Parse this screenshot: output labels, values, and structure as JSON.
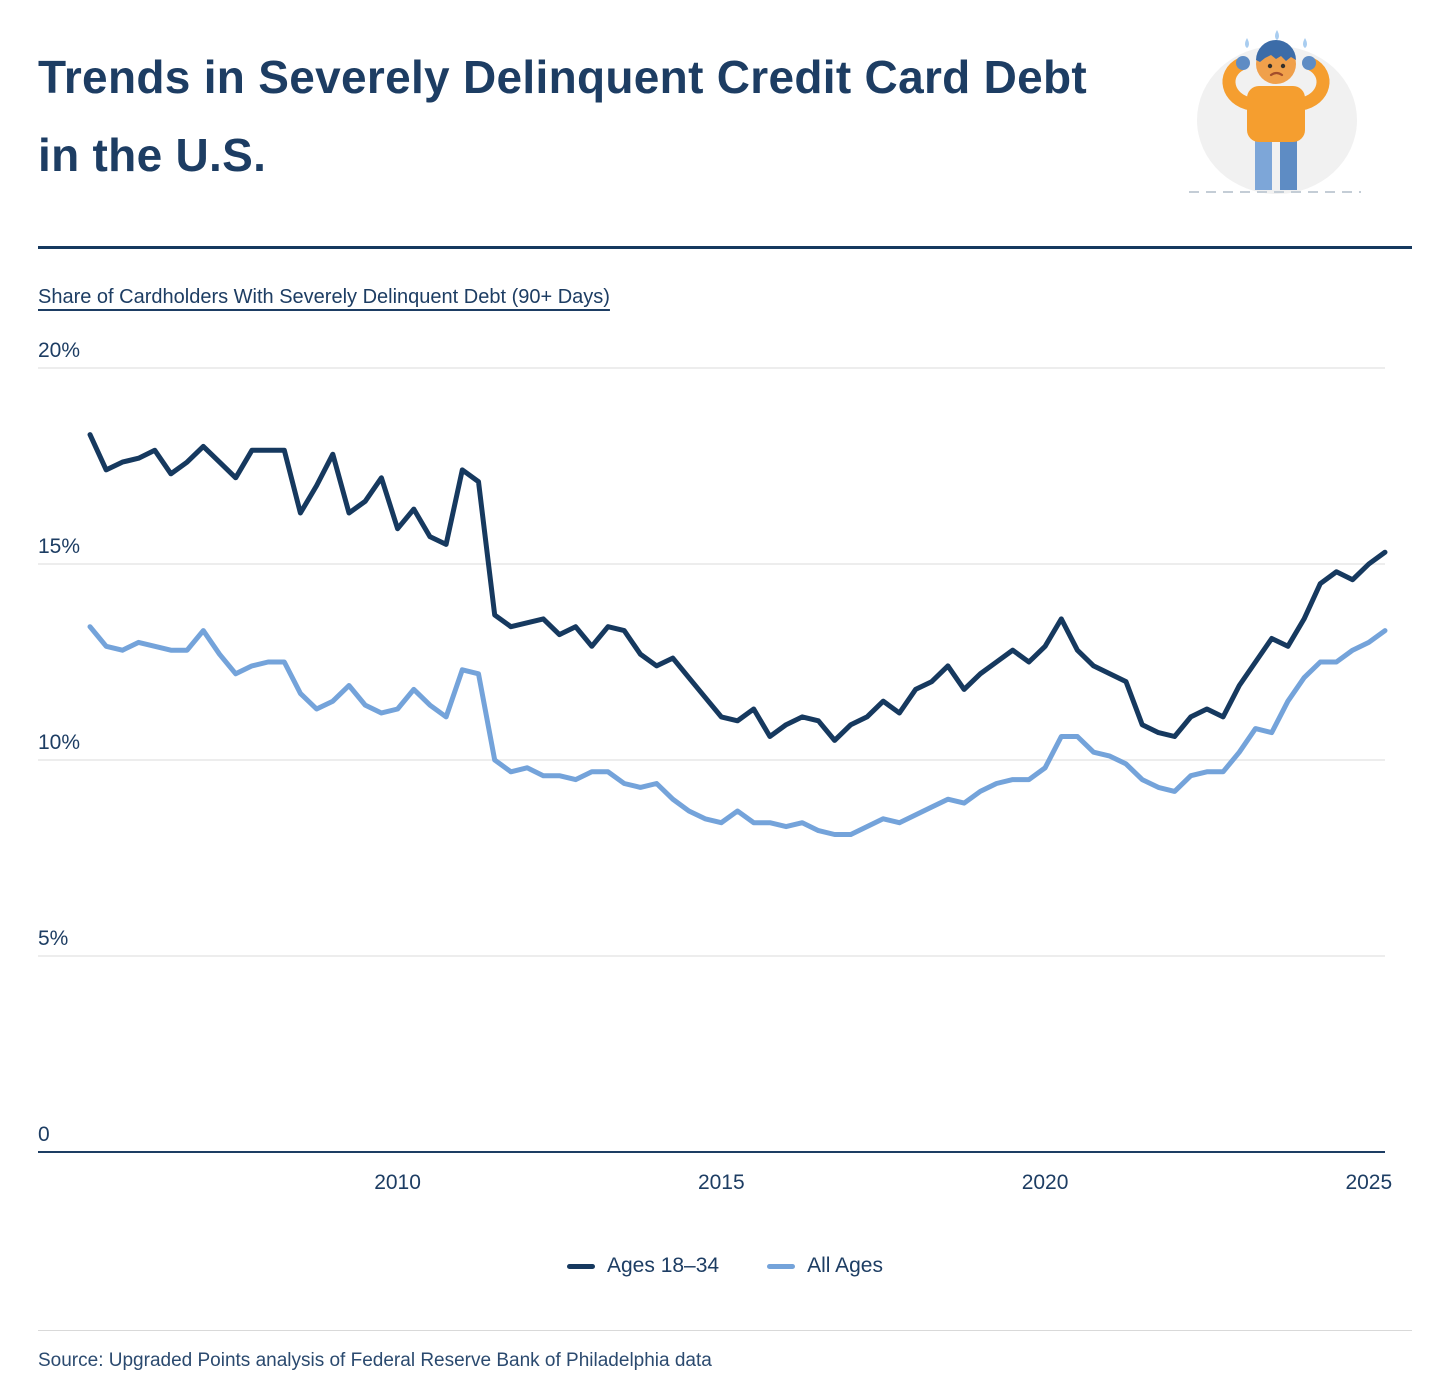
{
  "page": {
    "title": "Trends in Severely Delinquent Credit Card Debt in the U.S.",
    "source": "Source: Upgraded Points analysis of Federal Reserve Bank of Philadelphia data"
  },
  "colors": {
    "navy": "#16395f",
    "title_text": "#1d3d63",
    "gridline": "#e7e7e7",
    "axis": "#1d3d63",
    "divider_light": "#d9d9d9"
  },
  "chart_data": {
    "type": "line",
    "title": "Share of Cardholders With Severely Delinquent Debt (90+ Days)",
    "x_unit": "year (quarterly observations)",
    "x_start": 2005.25,
    "x_step": 0.25,
    "x_range": [
      2005.25,
      2025.25
    ],
    "y_range": [
      0,
      20
    ],
    "grid": "horizontal",
    "legend_position": "bottom",
    "y_ticks": [
      {
        "value": 20,
        "label": "20%"
      },
      {
        "value": 15,
        "label": "15%"
      },
      {
        "value": 10,
        "label": "10%"
      },
      {
        "value": 5,
        "label": "5%"
      },
      {
        "value": 0,
        "label": "0"
      }
    ],
    "x_ticks": [
      {
        "value": 2010,
        "label": "2010"
      },
      {
        "value": 2015,
        "label": "2015"
      },
      {
        "value": 2020,
        "label": "2020"
      },
      {
        "value": 2025,
        "label": "2025"
      }
    ],
    "series": [
      {
        "name": "Ages 18–34",
        "color": "#16395f",
        "values": [
          18.3,
          17.4,
          17.6,
          17.7,
          17.9,
          17.3,
          17.6,
          18.0,
          17.6,
          17.2,
          17.9,
          17.9,
          17.9,
          16.3,
          17.0,
          17.8,
          16.3,
          16.6,
          17.2,
          15.9,
          16.4,
          15.7,
          15.5,
          17.4,
          17.1,
          13.7,
          13.4,
          13.5,
          13.6,
          13.2,
          13.4,
          12.9,
          13.4,
          13.3,
          12.7,
          12.4,
          12.6,
          12.1,
          11.6,
          11.1,
          11.0,
          11.3,
          10.6,
          10.9,
          11.1,
          11.0,
          10.5,
          10.9,
          11.1,
          11.5,
          11.2,
          11.8,
          12.0,
          12.4,
          11.8,
          12.2,
          12.5,
          12.8,
          12.5,
          12.9,
          13.6,
          12.8,
          12.4,
          12.2,
          12.0,
          10.9,
          10.7,
          10.6,
          11.1,
          11.3,
          11.1,
          11.9,
          12.5,
          13.1,
          12.9,
          13.6,
          14.5,
          14.8,
          14.6,
          15.0,
          15.3
        ]
      },
      {
        "name": "All Ages",
        "color": "#74a3da",
        "values": [
          13.4,
          12.9,
          12.8,
          13.0,
          12.9,
          12.8,
          12.8,
          13.3,
          12.7,
          12.2,
          12.4,
          12.5,
          12.5,
          11.7,
          11.3,
          11.5,
          11.9,
          11.4,
          11.2,
          11.3,
          11.8,
          11.4,
          11.1,
          12.3,
          12.2,
          10.0,
          9.7,
          9.8,
          9.6,
          9.6,
          9.5,
          9.7,
          9.7,
          9.4,
          9.3,
          9.4,
          9.0,
          8.7,
          8.5,
          8.4,
          8.7,
          8.4,
          8.4,
          8.3,
          8.4,
          8.2,
          8.1,
          8.1,
          8.3,
          8.5,
          8.4,
          8.6,
          8.8,
          9.0,
          8.9,
          9.2,
          9.4,
          9.5,
          9.5,
          9.8,
          10.6,
          10.6,
          10.2,
          10.1,
          9.9,
          9.5,
          9.3,
          9.2,
          9.6,
          9.7,
          9.7,
          10.2,
          10.8,
          10.7,
          11.5,
          12.1,
          12.5,
          12.5,
          12.8,
          13.0,
          13.3
        ]
      }
    ]
  }
}
